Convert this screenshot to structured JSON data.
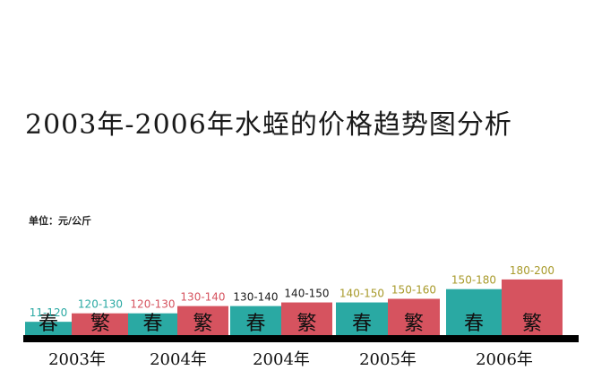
{
  "chart_data": {
    "type": "bar",
    "title": "2003年-2006年水蛭的价格趋势图分析",
    "unit": "单位：元/公斤",
    "series_labels": [
      "春",
      "繁"
    ],
    "colors": [
      "#2aa9a3",
      "#d6535f"
    ],
    "categories": [
      "2003年",
      "2004年",
      "2004年",
      "2005年",
      "2006年"
    ],
    "value_labels": [
      [
        "11-120",
        "120-130"
      ],
      [
        "120-130",
        "130-140"
      ],
      [
        "130-140",
        "140-150"
      ],
      [
        "140-150",
        "150-160"
      ],
      [
        "150-180",
        "180-200"
      ]
    ],
    "value_label_colors": [
      "#2aa9a3",
      "#d6535f",
      "#1a1a1a",
      "#a89a2a",
      "#a89a2a"
    ],
    "values": [
      [
        11,
        18
      ],
      [
        18,
        24
      ],
      [
        24,
        27
      ],
      [
        27,
        30
      ],
      [
        38,
        46
      ]
    ],
    "ylim": [
      0,
      50
    ]
  }
}
